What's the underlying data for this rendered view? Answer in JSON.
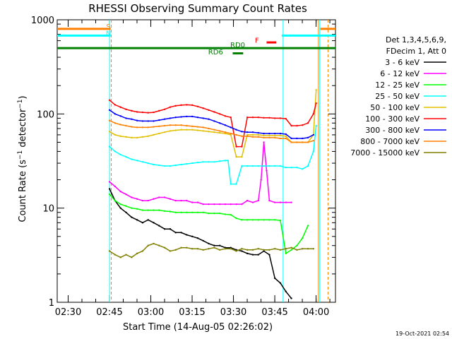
{
  "chart_data": {
    "type": "line",
    "title": "RHESSI Observing Summary Count Rates",
    "xlabel": "Start Time (14-Aug-05 02:26:02)",
    "ylabel": "Count Rate (s⁻¹ detector⁻¹)",
    "ylabel_main": "Count Rate (s",
    "ylabel_sup1": "−1",
    "ylabel_mid": " detector",
    "ylabel_sup2": "−1",
    "ylabel_end": ")",
    "yscale": "log",
    "ylim": [
      1,
      1000
    ],
    "y_ticks": [
      {
        "value": 1,
        "label": "1"
      },
      {
        "value": 10,
        "label": "10"
      },
      {
        "value": 100,
        "label": "100"
      },
      {
        "value": 1000,
        "label": "1000"
      }
    ],
    "x_unit": "minutes since 02:26:02",
    "xlim": [
      0,
      101
    ],
    "x_ticks": [
      {
        "value": 3.97,
        "label": "02:30"
      },
      {
        "value": 18.97,
        "label": "02:45"
      },
      {
        "value": 33.97,
        "label": "03:00"
      },
      {
        "value": 48.97,
        "label": "03:15"
      },
      {
        "value": 63.97,
        "label": "03:30"
      },
      {
        "value": 78.97,
        "label": "03:45"
      },
      {
        "value": 93.97,
        "label": "04:00"
      }
    ],
    "legend_header": [
      "Det 1,3,4,5,6,9,",
      "FDecim 1, Att 0"
    ],
    "series": [
      {
        "name": "3 - 6 keV",
        "color": "#000000",
        "x": [
          19,
          21,
          23,
          25,
          27,
          29,
          31,
          33,
          35,
          37,
          39,
          41,
          43,
          45,
          47,
          49,
          51,
          53,
          55,
          57,
          59,
          61,
          63,
          65,
          67,
          69,
          71,
          73,
          75,
          77,
          79,
          81,
          83,
          85
        ],
        "y": [
          16,
          12,
          10,
          9,
          8,
          7.5,
          7,
          7.5,
          7,
          6.5,
          6,
          6,
          5.5,
          5.5,
          5.2,
          5,
          4.8,
          4.5,
          4.2,
          4,
          4,
          3.8,
          3.8,
          3.6,
          3.5,
          3.3,
          3.2,
          3.2,
          3.5,
          3.2,
          1.8,
          1.6,
          1.3,
          1.1
        ]
      },
      {
        "name": "6 - 12 keV",
        "color": "#ff00ff",
        "x": [
          19,
          21,
          23,
          25,
          27,
          29,
          31,
          33,
          35,
          37,
          39,
          41,
          43,
          45,
          47,
          49,
          51,
          53,
          55,
          57,
          59,
          61,
          63,
          65,
          67,
          69,
          71,
          73,
          74,
          75,
          76,
          77,
          79,
          81,
          83,
          85
        ],
        "y": [
          19,
          17,
          15,
          14,
          13,
          12.5,
          12,
          12,
          12.5,
          13,
          13,
          12.5,
          12,
          12,
          12,
          11.5,
          11.5,
          11,
          11,
          11,
          11,
          11,
          11,
          11,
          11,
          12,
          11.5,
          12,
          20,
          50,
          25,
          12,
          11.5,
          11.5,
          11.5,
          11.5
        ]
      },
      {
        "name": "12 - 25 keV",
        "color": "#00ff00",
        "x": [
          19,
          21,
          23,
          25,
          27,
          29,
          31,
          33,
          35,
          37,
          39,
          41,
          43,
          45,
          47,
          49,
          51,
          53,
          55,
          57,
          59,
          61,
          63,
          65,
          67,
          69,
          71,
          73,
          75,
          77,
          79,
          81,
          83,
          85,
          87,
          89,
          91
        ],
        "y": [
          14,
          12,
          11,
          10.5,
          10,
          9.8,
          9.5,
          9.5,
          9.5,
          9.5,
          9.3,
          9.2,
          9,
          9,
          9,
          9,
          9,
          9,
          8.8,
          8.8,
          8.8,
          8.6,
          8.5,
          7.8,
          7.5,
          7.5,
          7.5,
          7.5,
          7.5,
          7.5,
          7.5,
          7.4,
          3.3,
          3.6,
          4,
          4.8,
          6.5
        ]
      },
      {
        "name": "25 - 50 keV",
        "color": "#00ffff",
        "x": [
          19,
          21,
          23,
          25,
          27,
          29,
          31,
          33,
          35,
          37,
          39,
          41,
          43,
          45,
          47,
          49,
          51,
          53,
          55,
          57,
          59,
          61,
          62,
          63,
          65,
          67,
          69,
          71,
          73,
          75,
          77,
          79,
          81,
          83,
          85,
          87,
          89,
          91,
          93,
          94
        ],
        "y": [
          45,
          40,
          37,
          35,
          33,
          32,
          31,
          30,
          29,
          28.5,
          28,
          28,
          28.5,
          29,
          29.5,
          30,
          30.5,
          31,
          31,
          31,
          31.5,
          32,
          32,
          18,
          18,
          28,
          28,
          28,
          28,
          28,
          28,
          28,
          28,
          27,
          27,
          27,
          26,
          28,
          40,
          75
        ]
      },
      {
        "name": "50 - 100 keV",
        "color": "#e0c000",
        "x": [
          19,
          21,
          23,
          25,
          27,
          29,
          31,
          33,
          35,
          37,
          39,
          41,
          43,
          45,
          47,
          49,
          51,
          53,
          55,
          57,
          59,
          61,
          63,
          65,
          67,
          69,
          71,
          73,
          75,
          77,
          79,
          81,
          83,
          85,
          87,
          89,
          91,
          93,
          94
        ],
        "y": [
          65,
          60,
          58,
          57,
          56,
          56,
          57,
          58,
          60,
          62,
          64,
          66,
          67,
          68,
          68,
          68,
          67,
          66,
          65,
          64,
          63,
          62,
          60,
          35,
          35,
          60,
          60,
          60,
          59,
          59,
          59,
          59,
          58,
          50,
          50,
          50,
          50,
          60,
          180
        ]
      },
      {
        "name": "100 - 300 keV",
        "color": "#ff0000",
        "x": [
          19,
          21,
          23,
          25,
          27,
          29,
          31,
          33,
          35,
          37,
          39,
          41,
          43,
          45,
          47,
          49,
          51,
          53,
          55,
          57,
          59,
          61,
          63,
          65,
          67,
          69,
          71,
          73,
          75,
          77,
          79,
          81,
          83,
          85,
          87,
          89,
          91,
          93,
          94
        ],
        "y": [
          140,
          125,
          118,
          112,
          108,
          105,
          104,
          103,
          104,
          108,
          112,
          118,
          122,
          124,
          125,
          124,
          120,
          115,
          110,
          105,
          100,
          95,
          92,
          45,
          45,
          92,
          92,
          92,
          91,
          91,
          90,
          90,
          89,
          75,
          75,
          76,
          80,
          100,
          130
        ]
      },
      {
        "name": "300 - 800 keV",
        "color": "#0000ff",
        "x": [
          19,
          21,
          23,
          25,
          27,
          29,
          31,
          33,
          35,
          37,
          39,
          41,
          43,
          45,
          47,
          49,
          51,
          53,
          55,
          57,
          59,
          61,
          63,
          65,
          67,
          69,
          71,
          73,
          75,
          77,
          79,
          81,
          83,
          85,
          87,
          89,
          91,
          93
        ],
        "y": [
          110,
          100,
          95,
          90,
          88,
          85,
          84,
          84,
          84,
          86,
          88,
          90,
          92,
          93,
          94,
          94,
          92,
          90,
          88,
          84,
          80,
          76,
          72,
          68,
          65,
          64,
          64,
          63,
          62,
          62,
          62,
          62,
          61,
          55,
          55,
          55,
          56,
          60
        ]
      },
      {
        "name": "800 - 7000 keV",
        "color": "#ff8000",
        "x": [
          19,
          21,
          23,
          25,
          27,
          29,
          31,
          33,
          35,
          37,
          39,
          41,
          43,
          45,
          47,
          49,
          51,
          53,
          55,
          57,
          59,
          61,
          63,
          65,
          67,
          69,
          71,
          73,
          75,
          77,
          79,
          81,
          83,
          85,
          87,
          89,
          91,
          93
        ],
        "y": [
          85,
          80,
          77,
          75,
          73,
          72,
          72,
          72,
          73,
          74,
          75,
          76,
          76,
          76,
          75,
          74,
          73,
          72,
          70,
          68,
          66,
          64,
          62,
          60,
          58,
          58,
          57,
          57,
          56,
          56,
          56,
          55,
          55,
          50,
          50,
          50,
          50,
          52
        ]
      },
      {
        "name": "7000 - 15000 keV",
        "color": "#808000",
        "x": [
          19,
          21,
          23,
          25,
          27,
          29,
          31,
          33,
          35,
          37,
          39,
          41,
          43,
          45,
          47,
          49,
          51,
          53,
          55,
          57,
          59,
          61,
          63,
          65,
          67,
          69,
          71,
          73,
          75,
          77,
          79,
          81,
          83,
          85,
          87,
          89,
          91,
          93
        ],
        "y": [
          3.5,
          3.2,
          3,
          3.2,
          3,
          3.3,
          3.5,
          4,
          4.2,
          4,
          3.8,
          3.5,
          3.6,
          3.8,
          3.8,
          3.7,
          3.7,
          3.6,
          3.7,
          3.8,
          3.6,
          3.7,
          3.7,
          3.5,
          3.7,
          3.6,
          3.6,
          3.7,
          3.6,
          3.6,
          3.7,
          3.6,
          3.7,
          3.8,
          3.6,
          3.7,
          3.7,
          3.7
        ]
      }
    ],
    "annotations": [
      {
        "label": "S",
        "color": "#ff8000",
        "x": 18.6,
        "y": 800
      },
      {
        "label": "N",
        "color": "#00ffff",
        "x": 18.6,
        "y": 680
      },
      {
        "label": "RD0",
        "color": "#008000",
        "x": 65.5,
        "y": 510
      },
      {
        "label": "RD6",
        "color": "#008000",
        "x": 57.5,
        "y": 430
      },
      {
        "label": "F",
        "color": "#ff0000",
        "x": 72.5,
        "y": 570
      }
    ],
    "state_bars": [
      {
        "name": "S",
        "color": "#ff8000",
        "x_start": 0,
        "x_end": 19.4,
        "y": 800
      },
      {
        "name": "S",
        "color": "#ff8000",
        "x_start": 95.5,
        "x_end": 101,
        "y": 800
      },
      {
        "name": "N",
        "color": "#00ffff",
        "x_start": 0,
        "x_end": 19.4,
        "y": 680
      },
      {
        "name": "N",
        "color": "#00ffff",
        "x_start": 81.5,
        "x_end": 101,
        "y": 680
      },
      {
        "name": "RD0",
        "color": "#008000",
        "x_start": 0,
        "x_end": 101,
        "y": 500
      },
      {
        "name": "RD6",
        "color": "#008000",
        "x_start": 63.7,
        "x_end": 67.5,
        "y": 440
      },
      {
        "name": "F",
        "color": "#ff0000",
        "x_start": 76,
        "x_end": 79.5,
        "y": 575
      }
    ],
    "vertical_markers": [
      {
        "x": 19.0,
        "color": "#00ffff",
        "style": "solid"
      },
      {
        "x": 19.6,
        "color": "#ff8000",
        "style": "dashed"
      },
      {
        "x": 82.0,
        "color": "#00ffff",
        "style": "solid"
      },
      {
        "x": 94.8,
        "color": "#ff8000",
        "style": "solid"
      },
      {
        "x": 95.3,
        "color": "#00ffff",
        "style": "solid"
      },
      {
        "x": 98.3,
        "color": "#ff8000",
        "style": "dashed"
      }
    ],
    "grid": false,
    "legend_position": "right"
  },
  "footer_timestamp": "19-Oct-2021 02:54"
}
